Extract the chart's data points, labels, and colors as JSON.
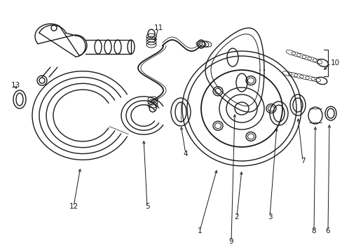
{
  "bg_color": "#ffffff",
  "line_color": "#1a1a1a",
  "line_width": 1.0,
  "label_fontsize": 7.5,
  "fig_width": 4.89,
  "fig_height": 3.6,
  "dpi": 100
}
